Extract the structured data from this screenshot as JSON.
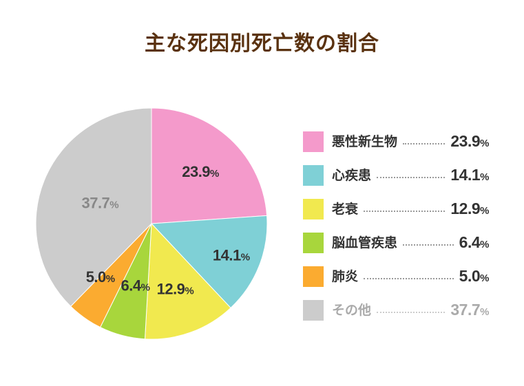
{
  "chart_data": {
    "type": "pie",
    "title": "主な死因別死亡数の割合",
    "unit": "%",
    "slices": [
      {
        "label": "悪性新生物",
        "value": 23.9,
        "color": "#f49acb",
        "label_color": "#333333"
      },
      {
        "label": "心疾患",
        "value": 14.1,
        "color": "#7fd0d6",
        "label_color": "#333333"
      },
      {
        "label": "老衰",
        "value": 12.9,
        "color": "#f1e94f",
        "label_color": "#333333"
      },
      {
        "label": "脳血管疾患",
        "value": 6.4,
        "color": "#a8d63c",
        "label_color": "#333333"
      },
      {
        "label": "肺炎",
        "value": 5.0,
        "color": "#fbab30",
        "label_color": "#333333"
      },
      {
        "label": "その他",
        "value": 37.7,
        "color": "#cccccc",
        "label_color": "#888888"
      }
    ],
    "legend_position": "right"
  }
}
